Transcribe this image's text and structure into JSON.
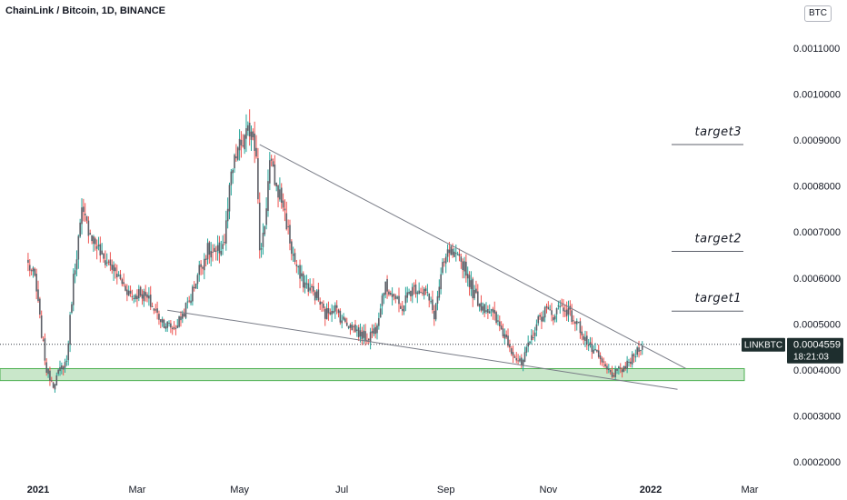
{
  "title": "ChainLink / Bitcoin, 1D, BINANCE",
  "currency_button": "BTC",
  "chart_data": {
    "type": "candlestick",
    "symbol": "LINKBTC",
    "y_ticks": [
      "0.0011000",
      "0.0010000",
      "0.0009000",
      "0.0008000",
      "0.0007000",
      "0.0006000",
      "0.0005000",
      "0.0004000",
      "0.0003000",
      "0.0002000"
    ],
    "y_tick_values": [
      0.0011,
      0.001,
      0.0009,
      0.0008,
      0.0007,
      0.0006,
      0.0005,
      0.0004,
      0.0003,
      0.0002
    ],
    "x_ticks": [
      "2021",
      "Mar",
      "May",
      "Jul",
      "Sep",
      "Nov",
      "2022",
      "Mar"
    ],
    "x_tick_dates": [
      "2021-01-01",
      "2021-03-01",
      "2021-05-01",
      "2021-07-01",
      "2021-09-01",
      "2021-11-01",
      "2022-01-01",
      "2022-03-01"
    ],
    "last_price": "0.0004559",
    "countdown": "18:21:03",
    "price_path": [
      [
        "2020-12-26",
        0.00063
      ],
      [
        "2020-12-30",
        0.0006
      ],
      [
        "2021-01-03",
        0.00048
      ],
      [
        "2021-01-06",
        0.0004
      ],
      [
        "2021-01-10",
        0.00037
      ],
      [
        "2021-01-14",
        0.0004
      ],
      [
        "2021-01-18",
        0.00042
      ],
      [
        "2021-01-22",
        0.0006
      ],
      [
        "2021-01-27",
        0.00074
      ],
      [
        "2021-02-01",
        0.0007
      ],
      [
        "2021-02-05",
        0.00067
      ],
      [
        "2021-02-09",
        0.00064
      ],
      [
        "2021-02-13",
        0.00063
      ],
      [
        "2021-02-18",
        0.0006
      ],
      [
        "2021-02-22",
        0.00058
      ],
      [
        "2021-02-26",
        0.00056
      ],
      [
        "2021-03-03",
        0.00057
      ],
      [
        "2021-03-08",
        0.00055
      ],
      [
        "2021-03-13",
        0.00052
      ],
      [
        "2021-03-18",
        0.0005
      ],
      [
        "2021-03-23",
        0.00049
      ],
      [
        "2021-03-28",
        0.00052
      ],
      [
        "2021-04-02",
        0.00056
      ],
      [
        "2021-04-07",
        0.00062
      ],
      [
        "2021-04-12",
        0.00066
      ],
      [
        "2021-04-17",
        0.00065
      ],
      [
        "2021-04-22",
        0.00068
      ],
      [
        "2021-04-26",
        0.00082
      ],
      [
        "2021-04-30",
        0.00088
      ],
      [
        "2021-05-04",
        0.0009
      ],
      [
        "2021-05-08",
        0.00093
      ],
      [
        "2021-05-11",
        0.00088
      ],
      [
        "2021-05-13",
        0.00065
      ],
      [
        "2021-05-16",
        0.00072
      ],
      [
        "2021-05-19",
        0.00085
      ],
      [
        "2021-05-23",
        0.0008
      ],
      [
        "2021-05-27",
        0.00076
      ],
      [
        "2021-06-01",
        0.00066
      ],
      [
        "2021-06-06",
        0.0006
      ],
      [
        "2021-06-11",
        0.00058
      ],
      [
        "2021-06-16",
        0.00056
      ],
      [
        "2021-06-21",
        0.00052
      ],
      [
        "2021-06-26",
        0.00054
      ],
      [
        "2021-07-01",
        0.00051
      ],
      [
        "2021-07-06",
        0.0005
      ],
      [
        "2021-07-11",
        0.00048
      ],
      [
        "2021-07-16",
        0.00047
      ],
      [
        "2021-07-21",
        0.00049
      ],
      [
        "2021-07-26",
        0.00058
      ],
      [
        "2021-07-31",
        0.00057
      ],
      [
        "2021-08-05",
        0.00053
      ],
      [
        "2021-08-10",
        0.00057
      ],
      [
        "2021-08-15",
        0.00058
      ],
      [
        "2021-08-20",
        0.00057
      ],
      [
        "2021-08-25",
        0.00052
      ],
      [
        "2021-08-30",
        0.00062
      ],
      [
        "2021-09-03",
        0.00066
      ],
      [
        "2021-09-07",
        0.00064
      ],
      [
        "2021-09-12",
        0.00063
      ],
      [
        "2021-09-17",
        0.00057
      ],
      [
        "2021-09-22",
        0.00054
      ],
      [
        "2021-09-27",
        0.00053
      ],
      [
        "2021-10-02",
        0.0005
      ],
      [
        "2021-10-07",
        0.00047
      ],
      [
        "2021-10-12",
        0.00043
      ],
      [
        "2021-10-16",
        0.00041
      ],
      [
        "2021-10-20",
        0.00045
      ],
      [
        "2021-10-25",
        0.0005
      ],
      [
        "2021-10-30",
        0.00053
      ],
      [
        "2021-11-04",
        0.00052
      ],
      [
        "2021-11-08",
        0.00054
      ],
      [
        "2021-11-12",
        0.00053
      ],
      [
        "2021-11-16",
        0.00051
      ],
      [
        "2021-11-20",
        0.00049
      ],
      [
        "2021-11-24",
        0.00046
      ],
      [
        "2021-11-28",
        0.00044
      ],
      [
        "2021-12-02",
        0.00042
      ],
      [
        "2021-12-06",
        0.0004
      ],
      [
        "2021-12-10",
        0.00039
      ],
      [
        "2021-12-14",
        0.0004
      ],
      [
        "2021-12-18",
        0.00041
      ],
      [
        "2021-12-22",
        0.00043
      ],
      [
        "2021-12-25",
        0.00045
      ],
      [
        "2021-12-27",
        0.0004559
      ]
    ],
    "annotations": {
      "targets": [
        {
          "label": "target1",
          "price": 0.000528
        },
        {
          "label": "target2",
          "price": 0.000658
        },
        {
          "label": "target3",
          "price": 0.00089
        }
      ],
      "support_zone": {
        "from": 0.000377,
        "to": 0.000403
      },
      "upper_trendline": [
        [
          "2021-05-13",
          0.00089
        ],
        [
          "2022-01-22",
          0.000403
        ]
      ],
      "lower_trendline": [
        [
          "2021-03-19",
          0.00053
        ],
        [
          "2022-01-17",
          0.000358
        ]
      ]
    },
    "colors": {
      "up": "#26a69a",
      "down": "#ef5350",
      "candle_body": "#5d6068",
      "zone": "#4caf50",
      "price_tag": "#1e2e2e"
    }
  }
}
